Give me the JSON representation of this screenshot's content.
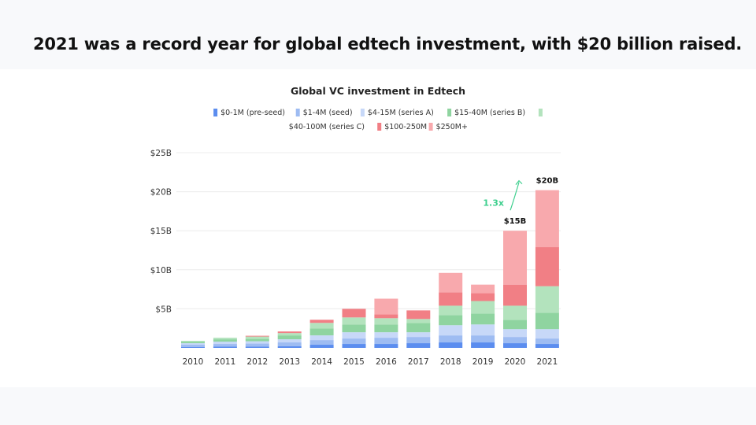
{
  "headline": "2021 was a record year for global edtech investment, with $20 billion raised.",
  "chart_data": {
    "type": "bar",
    "stacked": true,
    "title": "Global VC investment in Edtech",
    "xlabel": "",
    "ylabel": "",
    "ylim": [
      0,
      25
    ],
    "y_ticks": [
      "$5B",
      "$10B",
      "$15B",
      "$20B",
      "$25B"
    ],
    "y_tick_values": [
      5,
      10,
      15,
      20,
      25
    ],
    "grid": true,
    "legend_position": "top",
    "categories": [
      "2010",
      "2011",
      "2012",
      "2013",
      "2014",
      "2015",
      "2016",
      "2017",
      "2018",
      "2019",
      "2020",
      "2021"
    ],
    "series": [
      {
        "name": "$0-1M (pre-seed)",
        "color": "#5b8def",
        "values": [
          0.1,
          0.15,
          0.15,
          0.2,
          0.4,
          0.5,
          0.5,
          0.6,
          0.7,
          0.7,
          0.6,
          0.5
        ]
      },
      {
        "name": "$1-4M (seed)",
        "color": "#9ebcf2",
        "values": [
          0.3,
          0.35,
          0.4,
          0.5,
          0.6,
          0.7,
          0.8,
          0.8,
          0.9,
          0.9,
          0.8,
          0.7
        ]
      },
      {
        "name": "$4-15M (series A)",
        "color": "#c7d8f8",
        "values": [
          0.2,
          0.3,
          0.3,
          0.4,
          0.6,
          0.8,
          0.7,
          0.6,
          1.3,
          1.4,
          1.0,
          1.2
        ]
      },
      {
        "name": "$15-40M (series B)",
        "color": "#8fd4a0",
        "values": [
          0.2,
          0.3,
          0.3,
          0.5,
          0.9,
          1.0,
          1.0,
          1.2,
          1.3,
          1.4,
          1.2,
          2.1
        ]
      },
      {
        "name": "$40-100M (series C)",
        "color": "#b3e3bd",
        "values": [
          0.1,
          0.2,
          0.3,
          0.3,
          0.7,
          0.9,
          0.8,
          0.5,
          1.2,
          1.6,
          1.8,
          3.4
        ]
      },
      {
        "name": "$100-250M",
        "color": "#f17f85",
        "values": [
          0,
          0,
          0.1,
          0.2,
          0.4,
          1.1,
          0.5,
          1.1,
          1.7,
          1.0,
          2.7,
          5.0
        ]
      },
      {
        "name": "$250M+",
        "color": "#f8a9ad",
        "values": [
          0,
          0,
          0,
          0,
          0,
          0,
          2.0,
          0,
          2.5,
          1.1,
          6.9,
          7.3
        ]
      }
    ],
    "annotations": [
      {
        "category": "2020",
        "text": "$15B"
      },
      {
        "category": "2021",
        "text": "$20B"
      },
      {
        "from": "2020",
        "to": "2021",
        "text": "1.3x"
      }
    ]
  }
}
